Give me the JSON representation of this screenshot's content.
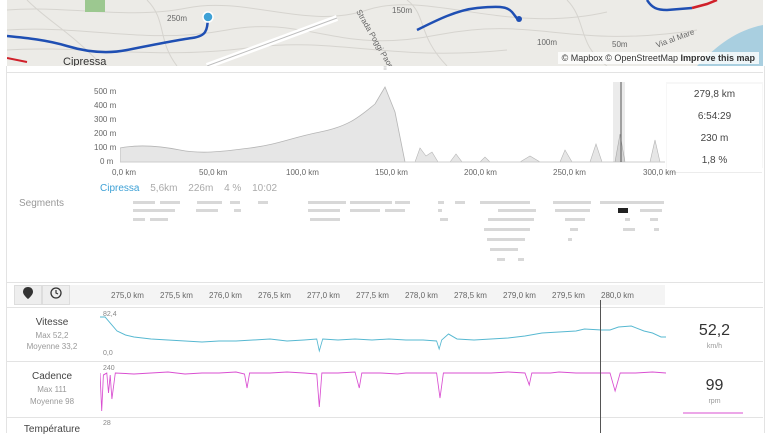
{
  "map": {
    "place_label": "Cipressa",
    "road_label": "Strada Poggi Paorelli",
    "sea_road_label": "Via al Mare",
    "contour_labels": [
      "250m",
      "150m",
      "100m",
      "100m",
      "50m"
    ],
    "attribution_mapbox": "© Mapbox",
    "attribution_osm": "© OpenStreetMap",
    "improve_link": "Improve this map"
  },
  "elevation": {
    "y_ticks": [
      "500 m",
      "400 m",
      "300 m",
      "200 m",
      "100 m",
      "0 m"
    ],
    "x_ticks": [
      "0,0 km",
      "50,0 km",
      "100,0 km",
      "150,0 km",
      "200,0 km",
      "250,0 km",
      "300,0 km"
    ],
    "stats": [
      "279,8 km",
      "6:54:29",
      "230 m",
      "1,8 %"
    ]
  },
  "segments": {
    "title": "Segments",
    "highlight": {
      "name": "Cipressa",
      "distance": "5,6km",
      "elevation": "226m",
      "grade": "4 %",
      "time": "10:02"
    }
  },
  "toolbar": {
    "pin_icon": "map-pin-icon",
    "clock_icon": "clock-icon"
  },
  "zoom_axis": {
    "ticks": [
      "275,0 km",
      "275,5 km",
      "276,0 km",
      "276,5 km",
      "277,0 km",
      "277,5 km",
      "278,0 km",
      "278,5 km",
      "279,0 km",
      "279,5 km",
      "280,0 km"
    ]
  },
  "metrics": {
    "speed": {
      "name": "Vitesse",
      "max": "Max 52,2",
      "avg": "Moyenne 33,2",
      "value": "52,2",
      "unit": "km/h",
      "axis_top": "82,4",
      "axis_bottom": "0,0",
      "color": "#56b8d1"
    },
    "cadence": {
      "name": "Cadence",
      "max": "Max 111",
      "avg": "Moyenne 98",
      "value": "99",
      "unit": "rpm",
      "axis_top": "240",
      "color": "#d94fd1"
    },
    "temperature": {
      "name": "Température",
      "axis_top": "28"
    }
  },
  "colors": {
    "route_blue": "#1f4fb3",
    "route_red": "#d0202a",
    "elevation_fill": "#e6e6e6",
    "elevation_stroke": "#b5b5b5",
    "cursor_line": "#555555"
  }
}
